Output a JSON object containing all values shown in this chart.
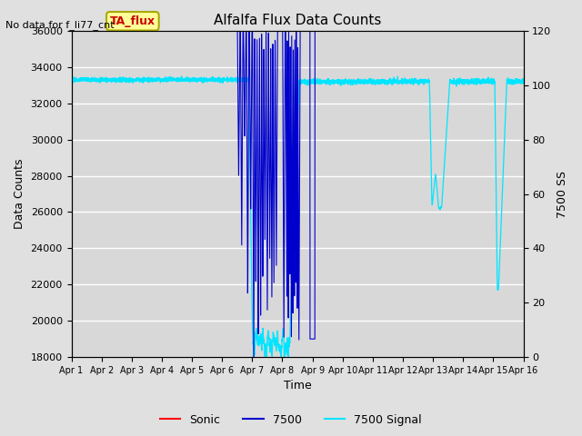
{
  "title": "Alfalfa Flux Data Counts",
  "no_data_label": "No data for f_li77_cnt",
  "xlabel": "Time",
  "ylabel_left": "Data Counts",
  "ylabel_right": "7500 SS",
  "ylim_left": [
    18000,
    36000
  ],
  "ylim_right": [
    0,
    120
  ],
  "yticks_left": [
    18000,
    20000,
    22000,
    24000,
    26000,
    28000,
    30000,
    32000,
    34000,
    36000
  ],
  "yticks_right": [
    0,
    20,
    40,
    60,
    80,
    100,
    120
  ],
  "background_color": "#e0e0e0",
  "plot_bg_color": "#d8d8d8",
  "legend_entries": [
    "Sonic",
    "7500",
    "7500 Signal"
  ],
  "legend_colors": [
    "#ff0000",
    "#0000cd",
    "#00e5ff"
  ],
  "ta_flux_label": "TA_flux",
  "ta_flux_color": "#ffff99",
  "ta_flux_border": "#aaa800",
  "x_tick_labels": [
    "Apr 1",
    "Apr 2",
    "Apr 3",
    "Apr 4",
    "Apr 5",
    "Apr 6",
    "Apr 7",
    "Apr 8",
    "Apr 9",
    "Apr 10",
    "Apr 11",
    "Apr 12",
    "Apr 13",
    "Apr 14",
    "Apr 15",
    "Apr 16"
  ]
}
